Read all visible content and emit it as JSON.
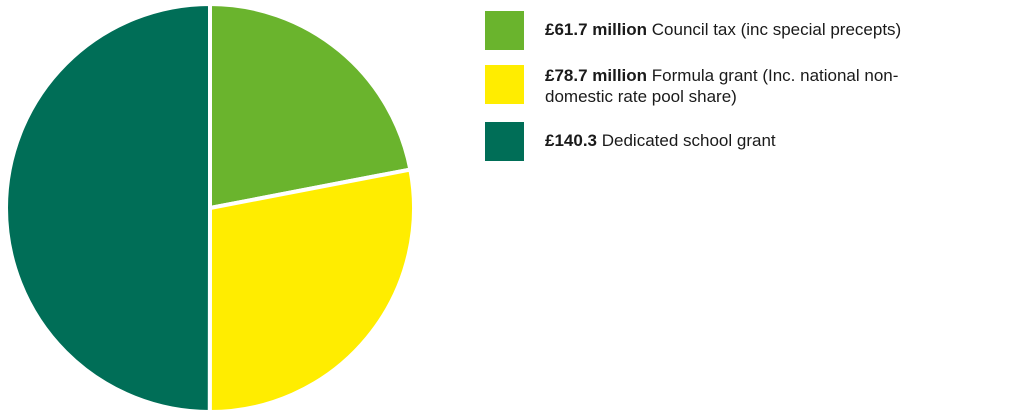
{
  "chart_data": {
    "type": "pie",
    "title": "",
    "slices": [
      {
        "amount_label": "£61.7 million",
        "label": " Council tax (inc special precepts)",
        "value": 61.7,
        "color": "#6ab42d"
      },
      {
        "amount_label": "£78.7 million",
        "label": "Formula grant (Inc. national non-domestic rate pool share)",
        "value": 78.7,
        "color": "#ffed00"
      },
      {
        "amount_label": "£140.3",
        "label": "Dedicated school grant",
        "value": 140.3,
        "color": "#006e57"
      }
    ],
    "legend_position": "right"
  }
}
